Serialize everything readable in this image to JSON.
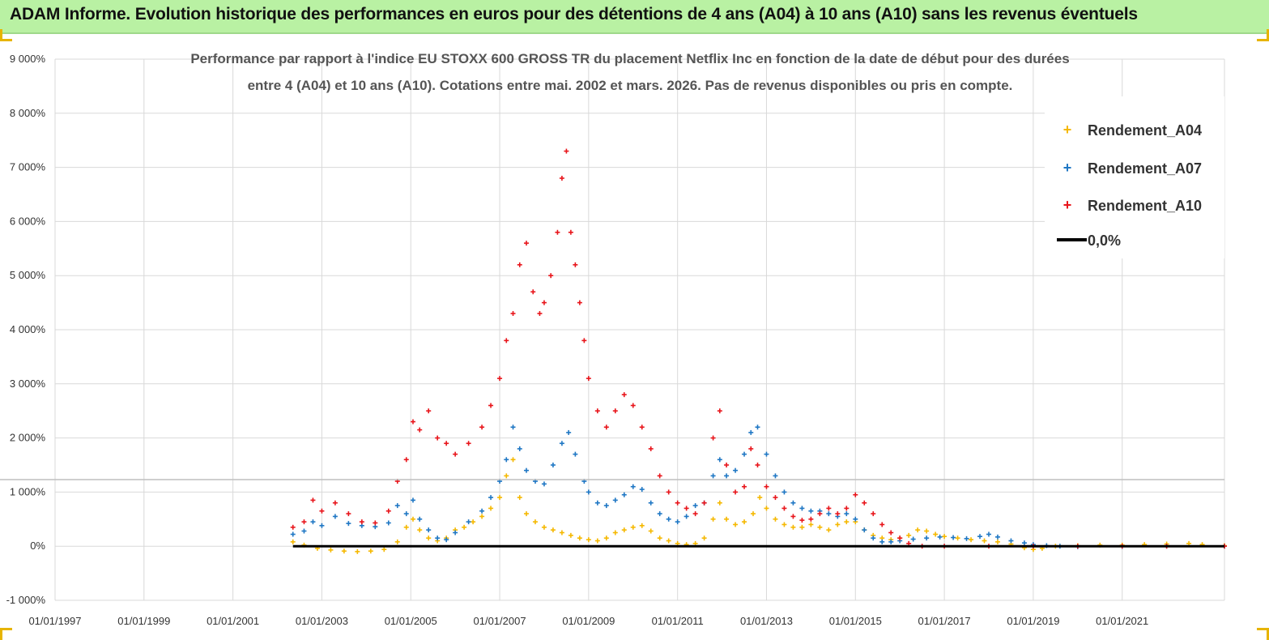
{
  "banner": {
    "title": "ADAM Informe. Evolution historique des performances en euros pour des détentions de 4 ans (A04) à 10 ans (A10) sans les revenus éventuels"
  },
  "colors": {
    "A04": "#f5b800",
    "A07": "#1f77c4",
    "A10": "#e8151b",
    "zero": "#000000",
    "banner": "#b9f1a3"
  },
  "chart_data": {
    "type": "scatter",
    "title_lines": [
      "Performance par rapport à l'indice EU STOXX 600 GROSS TR  du placement Netflix Inc en fonction de la date de début pour des durées",
      "entre 4 (A04) et 10 ans (A10).  Cotations entre mai. 2002 et mars. 2026. Pas de revenus disponibles ou pris  en compte."
    ],
    "x_axis": {
      "min": 1997.0,
      "max": 2023.3,
      "ticks": [
        {
          "value": 1997,
          "label": "01/01/1997"
        },
        {
          "value": 1999,
          "label": "01/01/1999"
        },
        {
          "value": 2001,
          "label": "01/01/2001"
        },
        {
          "value": 2003,
          "label": "01/01/2003"
        },
        {
          "value": 2005,
          "label": "01/01/2005"
        },
        {
          "value": 2007,
          "label": "01/01/2007"
        },
        {
          "value": 2009,
          "label": "01/01/2009"
        },
        {
          "value": 2011,
          "label": "01/01/2011"
        },
        {
          "value": 2013,
          "label": "01/01/2013"
        },
        {
          "value": 2015,
          "label": "01/01/2015"
        },
        {
          "value": 2017,
          "label": "01/01/2017"
        },
        {
          "value": 2019,
          "label": "01/01/2019"
        },
        {
          "value": 2021,
          "label": "01/01/2021"
        }
      ]
    },
    "y_axis": {
      "min": -1000,
      "max": 9000,
      "ticks": [
        {
          "value": -1000,
          "label": "-1 000%"
        },
        {
          "value": 0,
          "label": "0%"
        },
        {
          "value": 1000,
          "label": "1 000%"
        },
        {
          "value": 2000,
          "label": "2 000%"
        },
        {
          "value": 3000,
          "label": "3 000%"
        },
        {
          "value": 4000,
          "label": "4 000%"
        },
        {
          "value": 5000,
          "label": "5 000%"
        },
        {
          "value": 6000,
          "label": "6 000%"
        },
        {
          "value": 7000,
          "label": "7 000%"
        },
        {
          "value": 8000,
          "label": "8 000%"
        },
        {
          "value": 9000,
          "label": "9 000%"
        }
      ]
    },
    "grid": true,
    "legend": {
      "position": "top-right",
      "entries": [
        "Rendement_A04",
        "Rendement_A07",
        "Rendement_A10",
        "0,0%"
      ]
    },
    "reference_line": {
      "name": "0,0%",
      "y": 0,
      "x_start": 2002.35,
      "x_end": 2023.3
    },
    "series": [
      {
        "name": "Rendement_A04",
        "color": "A04",
        "marker": "+",
        "points": [
          [
            2002.35,
            80
          ],
          [
            2002.6,
            20
          ],
          [
            2002.9,
            -40
          ],
          [
            2003.2,
            -70
          ],
          [
            2003.5,
            -90
          ],
          [
            2003.8,
            -100
          ],
          [
            2004.1,
            -90
          ],
          [
            2004.4,
            -60
          ],
          [
            2004.7,
            80
          ],
          [
            2004.9,
            350
          ],
          [
            2005.05,
            500
          ],
          [
            2005.2,
            300
          ],
          [
            2005.4,
            150
          ],
          [
            2005.6,
            100
          ],
          [
            2005.8,
            150
          ],
          [
            2006.0,
            300
          ],
          [
            2006.2,
            350
          ],
          [
            2006.4,
            450
          ],
          [
            2006.6,
            550
          ],
          [
            2006.8,
            700
          ],
          [
            2007.0,
            900
          ],
          [
            2007.15,
            1300
          ],
          [
            2007.3,
            1600
          ],
          [
            2007.45,
            900
          ],
          [
            2007.6,
            600
          ],
          [
            2007.8,
            450
          ],
          [
            2008.0,
            350
          ],
          [
            2008.2,
            300
          ],
          [
            2008.4,
            250
          ],
          [
            2008.6,
            200
          ],
          [
            2008.8,
            150
          ],
          [
            2009.0,
            120
          ],
          [
            2009.2,
            100
          ],
          [
            2009.4,
            150
          ],
          [
            2009.6,
            250
          ],
          [
            2009.8,
            300
          ],
          [
            2010.0,
            350
          ],
          [
            2010.2,
            380
          ],
          [
            2010.4,
            280
          ],
          [
            2010.6,
            150
          ],
          [
            2010.8,
            100
          ],
          [
            2011.0,
            50
          ],
          [
            2011.2,
            30
          ],
          [
            2011.4,
            50
          ],
          [
            2011.6,
            150
          ],
          [
            2011.8,
            500
          ],
          [
            2011.95,
            800
          ],
          [
            2012.1,
            500
          ],
          [
            2012.3,
            400
          ],
          [
            2012.5,
            450
          ],
          [
            2012.7,
            600
          ],
          [
            2012.85,
            900
          ],
          [
            2013.0,
            700
          ],
          [
            2013.2,
            500
          ],
          [
            2013.4,
            400
          ],
          [
            2013.6,
            350
          ],
          [
            2013.8,
            350
          ],
          [
            2014.0,
            400
          ],
          [
            2014.2,
            350
          ],
          [
            2014.4,
            300
          ],
          [
            2014.6,
            400
          ],
          [
            2014.8,
            450
          ],
          [
            2015.0,
            450
          ],
          [
            2015.2,
            300
          ],
          [
            2015.4,
            200
          ],
          [
            2015.6,
            150
          ],
          [
            2015.8,
            120
          ],
          [
            2016.0,
            150
          ],
          [
            2016.2,
            200
          ],
          [
            2016.4,
            300
          ],
          [
            2016.6,
            280
          ],
          [
            2016.8,
            220
          ],
          [
            2017.0,
            180
          ],
          [
            2017.3,
            150
          ],
          [
            2017.6,
            120
          ],
          [
            2017.9,
            100
          ],
          [
            2018.2,
            80
          ],
          [
            2018.5,
            40
          ],
          [
            2018.8,
            -30
          ],
          [
            2019.0,
            -60
          ],
          [
            2019.2,
            -40
          ],
          [
            2019.5,
            0
          ],
          [
            2020.0,
            10
          ],
          [
            2020.5,
            20
          ],
          [
            2021.0,
            20
          ],
          [
            2021.5,
            30
          ],
          [
            2022.0,
            40
          ],
          [
            2022.5,
            50
          ],
          [
            2022.8,
            30
          ],
          [
            2023.3,
            10
          ]
        ]
      },
      {
        "name": "Rendement_A07",
        "color": "A07",
        "marker": "+",
        "points": [
          [
            2002.35,
            220
          ],
          [
            2002.6,
            280
          ],
          [
            2002.8,
            450
          ],
          [
            2003.0,
            380
          ],
          [
            2003.3,
            550
          ],
          [
            2003.6,
            420
          ],
          [
            2003.9,
            380
          ],
          [
            2004.2,
            360
          ],
          [
            2004.5,
            430
          ],
          [
            2004.7,
            750
          ],
          [
            2004.9,
            600
          ],
          [
            2005.05,
            850
          ],
          [
            2005.2,
            500
          ],
          [
            2005.4,
            300
          ],
          [
            2005.6,
            150
          ],
          [
            2005.8,
            120
          ],
          [
            2006.0,
            250
          ],
          [
            2006.3,
            450
          ],
          [
            2006.6,
            650
          ],
          [
            2006.8,
            900
          ],
          [
            2007.0,
            1200
          ],
          [
            2007.15,
            1600
          ],
          [
            2007.3,
            2200
          ],
          [
            2007.45,
            1800
          ],
          [
            2007.6,
            1400
          ],
          [
            2007.8,
            1200
          ],
          [
            2008.0,
            1150
          ],
          [
            2008.2,
            1500
          ],
          [
            2008.4,
            1900
          ],
          [
            2008.55,
            2100
          ],
          [
            2008.7,
            1700
          ],
          [
            2008.9,
            1200
          ],
          [
            2009.0,
            1000
          ],
          [
            2009.2,
            800
          ],
          [
            2009.4,
            750
          ],
          [
            2009.6,
            850
          ],
          [
            2009.8,
            950
          ],
          [
            2010.0,
            1100
          ],
          [
            2010.2,
            1050
          ],
          [
            2010.4,
            800
          ],
          [
            2010.6,
            600
          ],
          [
            2010.8,
            500
          ],
          [
            2011.0,
            450
          ],
          [
            2011.2,
            550
          ],
          [
            2011.4,
            750
          ],
          [
            2011.6,
            800
          ],
          [
            2011.8,
            1300
          ],
          [
            2011.95,
            1600
          ],
          [
            2012.1,
            1300
          ],
          [
            2012.3,
            1400
          ],
          [
            2012.5,
            1700
          ],
          [
            2012.65,
            2100
          ],
          [
            2012.8,
            2200
          ],
          [
            2013.0,
            1700
          ],
          [
            2013.2,
            1300
          ],
          [
            2013.4,
            1000
          ],
          [
            2013.6,
            800
          ],
          [
            2013.8,
            700
          ],
          [
            2014.0,
            650
          ],
          [
            2014.2,
            650
          ],
          [
            2014.4,
            600
          ],
          [
            2014.6,
            550
          ],
          [
            2014.8,
            600
          ],
          [
            2015.0,
            500
          ],
          [
            2015.2,
            300
          ],
          [
            2015.4,
            150
          ],
          [
            2015.6,
            80
          ],
          [
            2015.8,
            80
          ],
          [
            2016.0,
            100
          ],
          [
            2016.3,
            130
          ],
          [
            2016.6,
            150
          ],
          [
            2016.9,
            170
          ],
          [
            2017.2,
            160
          ],
          [
            2017.5,
            140
          ],
          [
            2017.8,
            180
          ],
          [
            2018.0,
            220
          ],
          [
            2018.2,
            170
          ],
          [
            2018.5,
            100
          ],
          [
            2018.8,
            60
          ],
          [
            2019.0,
            30
          ],
          [
            2019.3,
            10
          ],
          [
            2019.6,
            0
          ],
          [
            2020.0,
            -10
          ],
          [
            2021.0,
            -5
          ],
          [
            2022.0,
            0
          ],
          [
            2023.3,
            0
          ]
        ]
      },
      {
        "name": "Rendement_A10",
        "color": "A10",
        "marker": "+",
        "points": [
          [
            2002.35,
            350
          ],
          [
            2002.6,
            450
          ],
          [
            2002.8,
            850
          ],
          [
            2003.0,
            650
          ],
          [
            2003.3,
            800
          ],
          [
            2003.6,
            600
          ],
          [
            2003.9,
            450
          ],
          [
            2004.2,
            430
          ],
          [
            2004.5,
            650
          ],
          [
            2004.7,
            1200
          ],
          [
            2004.9,
            1600
          ],
          [
            2005.05,
            2300
          ],
          [
            2005.2,
            2150
          ],
          [
            2005.4,
            2500
          ],
          [
            2005.6,
            2000
          ],
          [
            2005.8,
            1900
          ],
          [
            2006.0,
            1700
          ],
          [
            2006.3,
            1900
          ],
          [
            2006.6,
            2200
          ],
          [
            2006.8,
            2600
          ],
          [
            2007.0,
            3100
          ],
          [
            2007.15,
            3800
          ],
          [
            2007.3,
            4300
          ],
          [
            2007.45,
            5200
          ],
          [
            2007.6,
            5600
          ],
          [
            2007.75,
            4700
          ],
          [
            2007.9,
            4300
          ],
          [
            2008.0,
            4500
          ],
          [
            2008.15,
            5000
          ],
          [
            2008.3,
            5800
          ],
          [
            2008.4,
            6800
          ],
          [
            2008.5,
            7300
          ],
          [
            2008.6,
            5800
          ],
          [
            2008.7,
            5200
          ],
          [
            2008.8,
            4500
          ],
          [
            2008.9,
            3800
          ],
          [
            2009.0,
            3100
          ],
          [
            2009.2,
            2500
          ],
          [
            2009.4,
            2200
          ],
          [
            2009.6,
            2500
          ],
          [
            2009.8,
            2800
          ],
          [
            2010.0,
            2600
          ],
          [
            2010.2,
            2200
          ],
          [
            2010.4,
            1800
          ],
          [
            2010.6,
            1300
          ],
          [
            2010.8,
            1000
          ],
          [
            2011.0,
            800
          ],
          [
            2011.2,
            700
          ],
          [
            2011.4,
            600
          ],
          [
            2011.6,
            800
          ],
          [
            2011.8,
            2000
          ],
          [
            2011.95,
            2500
          ],
          [
            2012.1,
            1500
          ],
          [
            2012.3,
            1000
          ],
          [
            2012.5,
            1100
          ],
          [
            2012.65,
            1800
          ],
          [
            2012.8,
            1500
          ],
          [
            2013.0,
            1100
          ],
          [
            2013.2,
            900
          ],
          [
            2013.4,
            700
          ],
          [
            2013.6,
            550
          ],
          [
            2013.8,
            480
          ],
          [
            2014.0,
            500
          ],
          [
            2014.2,
            600
          ],
          [
            2014.4,
            700
          ],
          [
            2014.6,
            600
          ],
          [
            2014.8,
            700
          ],
          [
            2015.0,
            950
          ],
          [
            2015.2,
            800
          ],
          [
            2015.4,
            600
          ],
          [
            2015.6,
            400
          ],
          [
            2015.8,
            250
          ],
          [
            2016.0,
            150
          ],
          [
            2016.2,
            50
          ],
          [
            2016.5,
            0
          ],
          [
            2017.0,
            0
          ],
          [
            2018.0,
            0
          ],
          [
            2019.0,
            0
          ],
          [
            2020.0,
            0
          ],
          [
            2021.0,
            0
          ],
          [
            2022.0,
            0
          ],
          [
            2023.3,
            0
          ]
        ]
      }
    ]
  }
}
